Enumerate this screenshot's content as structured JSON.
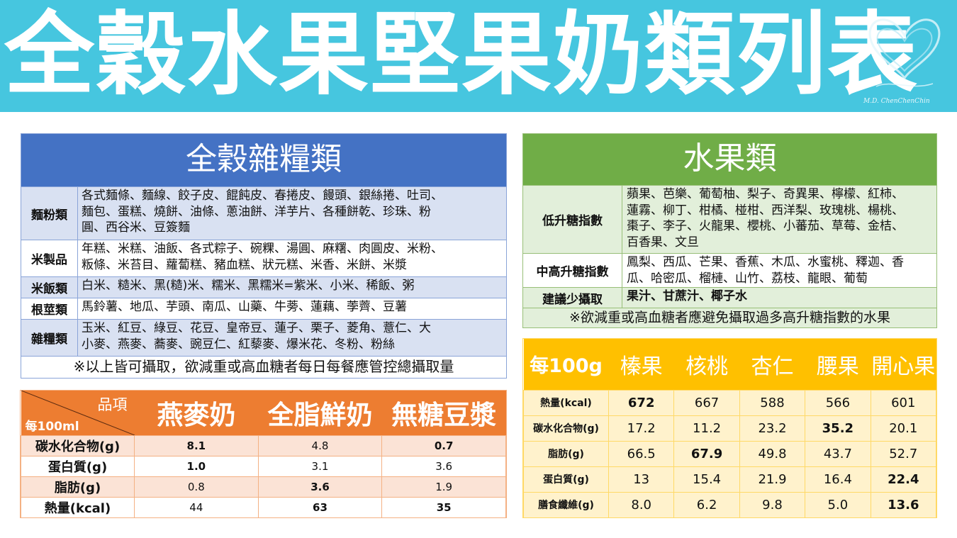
{
  "title": "全穀水果堅果奶類列表",
  "signature": "M.D. ChenChenChin",
  "grain": {
    "header": "全穀雜糧類",
    "rows": [
      {
        "label": "麵粉類",
        "text": "各式麵條、麵線、餃子皮、餛飩皮、春捲皮、饅頭、銀絲捲、吐司、\n麵包、蛋糕、燒餅、油條、蔥油餅、洋芋片、各種餅乾、珍珠、粉\n圓、西谷米、豆簽麵"
      },
      {
        "label": "米製品",
        "text": "年糕、米糕、油飯、各式粽子、碗粿、湯圓、麻糬、肉圓皮、米粉、\n粄條、米苔目、蘿蔔糕、豬血糕、狀元糕、米香、米餅、米漿"
      },
      {
        "label": "米飯類",
        "text": "白米、糙米、黑(糙)米、糯米、黑糯米=紫米、小米、稀飯、粥"
      },
      {
        "label": "根莖類",
        "text": "馬鈴薯、地瓜、芋頭、南瓜、山藥、牛蒡、蓮藕、荸薺、豆薯"
      },
      {
        "label": "雜糧類",
        "text": "玉米、紅豆、綠豆、花豆、皇帝豆、蓮子、栗子、菱角、薏仁、大\n小麥、燕麥、蕎麥、豌豆仁、紅藜麥、爆米花、冬粉、粉絲"
      }
    ],
    "note": "※以上皆可攝取，欲減重或高血糖者每日每餐應管控總攝取量"
  },
  "fruit": {
    "header": "水果類",
    "rows": [
      {
        "label": "低升糖指數",
        "text": "蘋果、芭樂、葡萄柚、梨子、奇異果、檸檬、紅柿、\n蓮霧、柳丁、柑橘、椪柑、西洋梨、玫瑰桃、楊桃、\n棗子、李子、火龍果、櫻桃、小蕃茄、草莓、金桔、\n百香果、文旦"
      },
      {
        "label": "中高升糖指數",
        "text": "鳳梨、西瓜、芒果、香蕉、木瓜、水蜜桃、釋迦、香\n瓜、哈密瓜、榴槤、山竹、荔枝、龍眼、葡萄"
      },
      {
        "label": "建議少攝取",
        "text": "果汁、甘蔗汁、椰子水"
      }
    ],
    "note": "※欲減重或高血糖者應避免攝取過多高升糖指數的水果"
  },
  "milk": {
    "corner_item": "品項",
    "corner_unit": "每100ml",
    "columns": [
      "燕麥奶",
      "全脂鮮奶",
      "無糖豆漿"
    ],
    "rows": [
      {
        "label": "碳水化合物(g)",
        "values": [
          "8.1",
          "4.8",
          "0.7"
        ],
        "bold": [
          true,
          false,
          true
        ]
      },
      {
        "label": "蛋白質(g)",
        "values": [
          "1.0",
          "3.1",
          "3.6"
        ],
        "bold": [
          true,
          false,
          false
        ]
      },
      {
        "label": "脂肪(g)",
        "values": [
          "0.8",
          "3.6",
          "1.9"
        ],
        "bold": [
          false,
          true,
          false
        ]
      },
      {
        "label": "熱量(kcal)",
        "values": [
          "44",
          "63",
          "35"
        ],
        "bold": [
          false,
          true,
          true
        ]
      }
    ]
  },
  "nuts": {
    "corner": "每100g",
    "columns": [
      "榛果",
      "核桃",
      "杏仁",
      "腰果",
      "開心果"
    ],
    "rows": [
      {
        "label": "熱量(kcal)",
        "values": [
          "672",
          "667",
          "588",
          "566",
          "601"
        ],
        "bold": [
          true,
          false,
          false,
          false,
          false
        ]
      },
      {
        "label": "碳水化合物(g)",
        "values": [
          "17.2",
          "11.2",
          "23.2",
          "35.2",
          "20.1"
        ],
        "bold": [
          false,
          false,
          false,
          true,
          false
        ]
      },
      {
        "label": "脂肪(g)",
        "values": [
          "66.5",
          "67.9",
          "49.8",
          "43.7",
          "52.7"
        ],
        "bold": [
          false,
          true,
          false,
          false,
          false
        ]
      },
      {
        "label": "蛋白質(g)",
        "values": [
          "13",
          "15.4",
          "21.9",
          "16.4",
          "22.4"
        ],
        "bold": [
          false,
          false,
          false,
          false,
          true
        ]
      },
      {
        "label": "膳食纖維(g)",
        "values": [
          "8.0",
          "6.2",
          "9.8",
          "5.0",
          "13.6"
        ],
        "bold": [
          false,
          false,
          false,
          false,
          true
        ]
      }
    ]
  },
  "colors": {
    "banner": "#46c6df",
    "grain": "#4472c4",
    "fruit": "#70ad47",
    "milk": "#ed7d31",
    "nuts": "#ffc000"
  }
}
